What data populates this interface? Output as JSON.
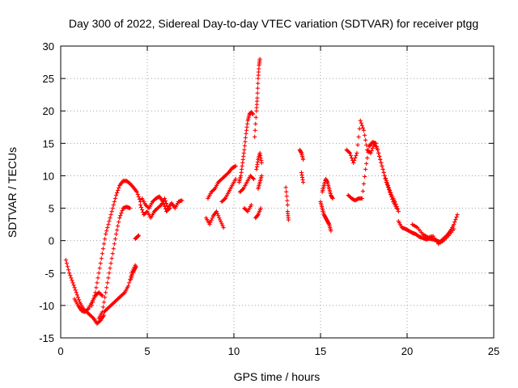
{
  "chart_data": {
    "type": "scatter",
    "title": "Day 300 of 2022, Sidereal Day-to-day VTEC variation (SDTVAR) for receiver ptgg",
    "xlabel": "GPS time / hours",
    "ylabel": "SDTVAR / TECUs",
    "xlim": [
      0,
      25
    ],
    "ylim": [
      -15,
      30
    ],
    "xticks": [
      0,
      5,
      10,
      15,
      20,
      25
    ],
    "yticks": [
      -15,
      -10,
      -5,
      0,
      5,
      10,
      15,
      20,
      25,
      30
    ],
    "grid": true,
    "marker": "+",
    "color": "#ff0000",
    "series": [
      {
        "name": "SDTVAR",
        "tracks": [
          {
            "x": [
              0.3,
              0.5,
              0.7,
              0.9,
              1.1,
              1.3,
              1.5,
              1.7,
              1.9,
              2.1,
              2.3,
              2.5
            ],
            "y": [
              -3,
              -5,
              -6.5,
              -8,
              -9.5,
              -10.5,
              -11,
              -11.5,
              -12,
              -12.8,
              -12.3,
              -11.5
            ]
          },
          {
            "x": [
              0.8,
              1.0,
              1.2,
              1.4,
              1.6,
              1.8,
              2.0,
              2.2,
              2.4
            ],
            "y": [
              -9,
              -10,
              -10.8,
              -11,
              -10.5,
              -9.5,
              -8.5,
              -8,
              -8.5
            ]
          },
          {
            "x": [
              1.8,
              2.0,
              2.2,
              2.4,
              2.6,
              2.8,
              3.0,
              3.2,
              3.4,
              3.6,
              3.8,
              4.0,
              4.2,
              4.4,
              4.6
            ],
            "y": [
              -10,
              -8,
              -5,
              -2,
              1,
              3,
              5,
              7,
              8.5,
              9.2,
              9.2,
              8.8,
              8.2,
              7.5,
              6
            ]
          },
          {
            "x": [
              2.2,
              2.4,
              2.6,
              2.8,
              3.0,
              3.2,
              3.4,
              3.6,
              3.8,
              4.0
            ],
            "y": [
              -12,
              -11,
              -8,
              -5,
              -2,
              1,
              3.5,
              5,
              5.2,
              5
            ]
          },
          {
            "x": [
              2.5,
              2.7,
              2.9,
              3.1,
              3.3,
              3.5,
              3.7,
              3.9,
              4.1,
              4.3
            ],
            "y": [
              -11,
              -10.5,
              -10,
              -9.5,
              -9,
              -8.5,
              -8,
              -7,
              -5,
              -3.8
            ]
          },
          {
            "x": [
              4.05,
              4.15,
              4.25,
              4.35
            ],
            "y": [
              -6,
              -5,
              -4.5,
              -4
            ]
          },
          {
            "x": [
              4.3,
              4.4,
              4.5
            ],
            "y": [
              0.3,
              0.5,
              0.8
            ]
          },
          {
            "x": [
              4.6,
              4.8,
              5.0,
              5.2,
              5.4,
              5.6,
              5.8,
              6.0,
              6.2,
              6.4,
              6.6,
              6.8,
              7.0
            ],
            "y": [
              5.5,
              4,
              4.5,
              3.5,
              4.5,
              5,
              5.5,
              6.5,
              5,
              5.8,
              5,
              6,
              6.2
            ]
          },
          {
            "x": [
              4.7,
              4.9,
              5.1,
              5.3,
              5.5,
              5.7,
              5.9,
              6.1,
              6.3
            ],
            "y": [
              6.5,
              5.5,
              5,
              6,
              6.5,
              6.8,
              6,
              4.5,
              5
            ]
          },
          {
            "x": [
              8.4,
              8.6,
              8.8,
              9.0,
              9.2,
              9.4
            ],
            "y": [
              3.5,
              2.5,
              3.8,
              4.5,
              3.2,
              2
            ]
          },
          {
            "x": [
              8.5,
              8.7,
              8.9,
              9.1,
              9.3,
              9.5,
              9.7,
              9.9,
              10.1
            ],
            "y": [
              6.5,
              7.5,
              8,
              9,
              9.5,
              10,
              10.5,
              11.2,
              11.5
            ]
          },
          {
            "x": [
              9.3,
              9.5,
              9.7,
              9.9,
              10.1
            ],
            "y": [
              6,
              6.5,
              7.5,
              8.5,
              9.5
            ]
          },
          {
            "x": [
              10.3,
              10.4,
              10.5,
              10.6,
              10.7,
              10.8,
              10.9,
              11.0,
              11.1
            ],
            "y": [
              9,
              10,
              12,
              14,
              16.5,
              18.5,
              19.5,
              19.8,
              19.5
            ]
          },
          {
            "x": [
              10.35,
              10.55,
              10.75,
              10.95,
              11.15
            ],
            "y": [
              7.5,
              8,
              9,
              10,
              9.5
            ]
          },
          {
            "x": [
              10.6,
              10.8,
              11.0
            ],
            "y": [
              5,
              4.5,
              5.5
            ]
          },
          {
            "x": [
              11.2,
              11.3,
              11.35,
              11.4,
              11.45,
              11.5
            ],
            "y": [
              16,
              20,
              22,
              25,
              27,
              28
            ]
          },
          {
            "x": [
              11.3,
              11.4,
              11.5,
              11.6
            ],
            "y": [
              11,
              12.5,
              13.5,
              12
            ]
          },
          {
            "x": [
              11.25,
              11.4,
              11.55
            ],
            "y": [
              3.5,
              4,
              5
            ]
          },
          {
            "x": [
              11.4,
              11.5,
              11.6
            ],
            "y": [
              8,
              9,
              10
            ]
          },
          {
            "x": [
              13.0,
              13.1
            ],
            "y": [
              8.2,
              5.5
            ]
          },
          {
            "x": [
              13.1,
              13.15
            ],
            "y": [
              4.5,
              3.2
            ]
          },
          {
            "x": [
              13.8,
              13.9,
              14.0
            ],
            "y": [
              14,
              13.5,
              12.5
            ]
          },
          {
            "x": [
              13.9,
              14.0
            ],
            "y": [
              10.5,
              9
            ]
          },
          {
            "x": [
              15.0,
              15.1,
              15.2,
              15.3,
              15.4,
              15.5,
              15.6
            ],
            "y": [
              6,
              5,
              4,
              3.5,
              3,
              2.5,
              1.5
            ]
          },
          {
            "x": [
              15.1,
              15.2,
              15.3,
              15.4,
              15.5,
              15.6,
              15.7
            ],
            "y": [
              7.5,
              8.5,
              9.5,
              9,
              8,
              7,
              6.5
            ]
          },
          {
            "x": [
              16.5,
              16.7,
              16.9,
              17.1,
              17.3,
              17.5,
              17.7,
              17.9,
              18.1,
              18.3,
              18.5,
              18.7,
              18.9,
              19.1,
              19.3,
              19.5
            ],
            "y": [
              14,
              13.5,
              12,
              13.5,
              18.5,
              17,
              14,
              13.5,
              15,
              14,
              12,
              10,
              8.5,
              7,
              6,
              4.5
            ]
          },
          {
            "x": [
              16.6,
              16.8,
              17.0,
              17.2,
              17.4,
              17.6,
              17.8,
              18.0,
              18.2,
              18.4,
              18.6,
              18.8,
              19.0,
              19.2,
              19.4
            ],
            "y": [
              7,
              6.5,
              6.2,
              6.5,
              6.5,
              11,
              14.5,
              15.2,
              15,
              13,
              11,
              9,
              7.5,
              6,
              5
            ]
          },
          {
            "x": [
              19.5,
              19.7,
              19.9,
              20.1,
              20.3,
              20.5,
              20.7,
              20.9,
              21.1,
              21.3,
              21.5,
              21.7,
              21.9,
              22.1,
              22.3,
              22.5,
              22.7,
              22.9
            ],
            "y": [
              3,
              2,
              1.8,
              1.5,
              1.2,
              1,
              0.6,
              0.4,
              0.2,
              0.3,
              0.2,
              0,
              -0.2,
              0.3,
              0.8,
              1.5,
              2.5,
              4
            ]
          },
          {
            "x": [
              20.3,
              20.6,
              20.9,
              21.2,
              21.5,
              21.8,
              22.1,
              22.4,
              22.7
            ],
            "y": [
              2.5,
              2,
              1,
              0.5,
              0.7,
              -0.5,
              0,
              0.8,
              1.8
            ]
          }
        ]
      }
    ]
  }
}
